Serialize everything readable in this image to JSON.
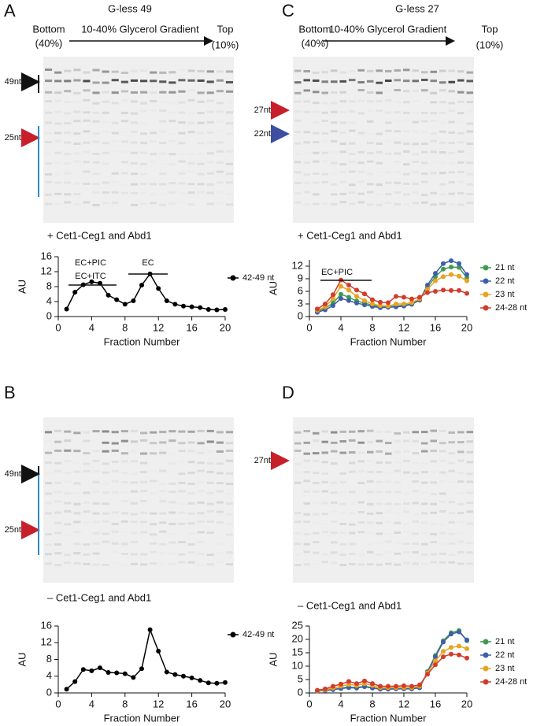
{
  "panels": [
    {
      "letter": "A",
      "gel_title": "G-less 49",
      "bottom": "Bottom",
      "bottom_pct": "(40%)",
      "gradient": "10-40% Glycerol Gradient",
      "top": "Top",
      "top_pct": "(10%)",
      "markers": [
        "49nt",
        "25nt"
      ],
      "caption": "+ Cet1-Ceg1 and Abd1"
    },
    {
      "letter": "B",
      "markers": [
        "49nt",
        "25nt"
      ],
      "caption": "– Cet1-Ceg1 and Abd1"
    },
    {
      "letter": "C",
      "gel_title": "G-less 27",
      "bottom": "Bottom",
      "bottom_pct": "(40%)",
      "gradient": "10-40% Glycerol Gradient",
      "top": "Top",
      "top_pct": "(10%)",
      "markers": [
        "27nt",
        "22nt"
      ],
      "caption": "+ Cet1-Ceg1 and Abd1"
    },
    {
      "letter": "D",
      "markers": [
        "27nt"
      ],
      "caption": "– Cet1-Ceg1 and Abd1"
    }
  ],
  "chart_data": [
    {
      "type": "line",
      "xlabel": "Fraction Number",
      "ylabel": "AU",
      "annotations": [
        "EC+PIC",
        "EC+ITC",
        "EC"
      ],
      "x": [
        1,
        2,
        3,
        4,
        5,
        6,
        7,
        8,
        9,
        10,
        11,
        12,
        13,
        14,
        15,
        16,
        17,
        18,
        19,
        20
      ],
      "series": [
        {
          "name": "42-49 nt",
          "color": "#000000",
          "values": [
            2.0,
            6.5,
            8.5,
            9.3,
            8.9,
            5.7,
            4.5,
            3.3,
            4.2,
            8.4,
            11.4,
            7.5,
            4.2,
            3.3,
            2.8,
            2.6,
            2.4,
            1.9,
            1.8,
            1.9
          ]
        }
      ],
      "xlim": [
        0,
        20
      ],
      "xticks": [
        0,
        4,
        8,
        12,
        16,
        20
      ],
      "ylim": [
        0,
        16
      ],
      "yticks": [
        0,
        4,
        8,
        12,
        16
      ]
    },
    {
      "type": "line",
      "xlabel": "Fraction Number",
      "ylabel": "AU",
      "annotations": [],
      "x": [
        1,
        2,
        3,
        4,
        5,
        6,
        7,
        8,
        9,
        10,
        11,
        12,
        13,
        14,
        15,
        16,
        17,
        18,
        19,
        20
      ],
      "series": [
        {
          "name": "42-49 nt",
          "color": "#000000",
          "values": [
            0.9,
            2.7,
            5.6,
            5.3,
            6.0,
            4.9,
            4.8,
            4.6,
            3.7,
            5.8,
            15.1,
            10.0,
            5.0,
            4.4,
            4.0,
            3.6,
            3.0,
            2.4,
            2.3,
            2.5
          ]
        }
      ],
      "xlim": [
        0,
        20
      ],
      "xticks": [
        0,
        4,
        8,
        12,
        16,
        20
      ],
      "ylim": [
        0,
        16
      ],
      "yticks": [
        0,
        4,
        8,
        12,
        16
      ]
    },
    {
      "type": "line",
      "xlabel": "Fraction Number",
      "ylabel": "AU",
      "annotations": [
        "EC+PIC"
      ],
      "x": [
        1,
        2,
        3,
        4,
        5,
        6,
        7,
        8,
        9,
        10,
        11,
        12,
        13,
        14,
        15,
        16,
        17,
        18,
        19,
        20
      ],
      "series": [
        {
          "name": "21 nt",
          "color": "#3f9a4f",
          "values": [
            1.2,
            2.0,
            3.2,
            5.3,
            4.6,
            3.7,
            3.2,
            2.7,
            2.3,
            2.3,
            2.5,
            2.7,
            3.0,
            4.0,
            7.0,
            9.5,
            11.3,
            11.8,
            11.7,
            9.2
          ]
        },
        {
          "name": "22 nt",
          "color": "#3e5fa8",
          "values": [
            1.0,
            1.6,
            2.6,
            4.3,
            3.8,
            3.2,
            2.8,
            2.4,
            2.1,
            2.2,
            2.3,
            2.5,
            2.9,
            3.9,
            7.5,
            10.3,
            12.6,
            13.3,
            12.6,
            10.0
          ]
        },
        {
          "name": "23 nt",
          "color": "#e8a321",
          "values": [
            1.5,
            2.3,
            4.3,
            7.2,
            6.3,
            4.8,
            3.8,
            3.0,
            2.6,
            2.5,
            3.0,
            3.0,
            3.3,
            4.2,
            6.5,
            8.5,
            9.5,
            10.0,
            9.6,
            8.5
          ]
        },
        {
          "name": "24-28 nt",
          "color": "#d23c2c",
          "values": [
            1.8,
            3.0,
            5.2,
            8.7,
            7.5,
            6.3,
            5.4,
            4.0,
            3.4,
            3.3,
            4.8,
            4.6,
            4.2,
            4.6,
            5.7,
            6.0,
            6.3,
            6.2,
            6.2,
            5.5
          ]
        }
      ],
      "xlim": [
        0,
        20
      ],
      "xticks": [
        0,
        4,
        8,
        12,
        16,
        20
      ],
      "ylim": [
        0,
        13.5
      ],
      "yticks": [
        0,
        3,
        6,
        9,
        12
      ]
    },
    {
      "type": "line",
      "xlabel": "Fraction Number",
      "ylabel": "AU",
      "annotations": [],
      "x": [
        1,
        2,
        3,
        4,
        5,
        6,
        7,
        8,
        9,
        10,
        11,
        12,
        13,
        14,
        15,
        16,
        17,
        18,
        19,
        20
      ],
      "series": [
        {
          "name": "21 nt",
          "color": "#3f9a4f",
          "values": [
            0.8,
            1.0,
            1.3,
            1.8,
            2.2,
            2.0,
            2.5,
            2.0,
            1.5,
            1.5,
            1.6,
            1.6,
            1.6,
            2.0,
            8.0,
            14.0,
            19.5,
            22.5,
            23.3,
            19.5
          ]
        },
        {
          "name": "22 nt",
          "color": "#3e5fa8",
          "values": [
            0.7,
            0.9,
            1.2,
            1.6,
            2.0,
            1.8,
            2.3,
            1.8,
            1.4,
            1.4,
            1.5,
            1.5,
            1.5,
            1.9,
            7.8,
            13.5,
            19.0,
            22.0,
            22.8,
            19.8
          ]
        },
        {
          "name": "23 nt",
          "color": "#e8a321",
          "values": [
            0.8,
            1.2,
            1.8,
            2.5,
            3.2,
            2.8,
            3.5,
            2.8,
            2.0,
            2.0,
            2.0,
            2.0,
            2.0,
            2.5,
            7.5,
            12.0,
            15.5,
            17.0,
            17.5,
            16.5
          ]
        },
        {
          "name": "24-28 nt",
          "color": "#d23c2c",
          "values": [
            1.0,
            1.5,
            2.5,
            3.3,
            4.3,
            3.5,
            4.5,
            3.5,
            2.5,
            2.5,
            2.5,
            2.7,
            2.5,
            3.0,
            7.0,
            10.5,
            13.5,
            14.5,
            14.2,
            13.0
          ]
        }
      ],
      "xlim": [
        0,
        20
      ],
      "xticks": [
        0,
        4,
        8,
        12,
        16,
        20
      ],
      "ylim": [
        0,
        25
      ],
      "yticks": [
        0,
        5,
        10,
        15,
        20,
        25
      ]
    }
  ]
}
